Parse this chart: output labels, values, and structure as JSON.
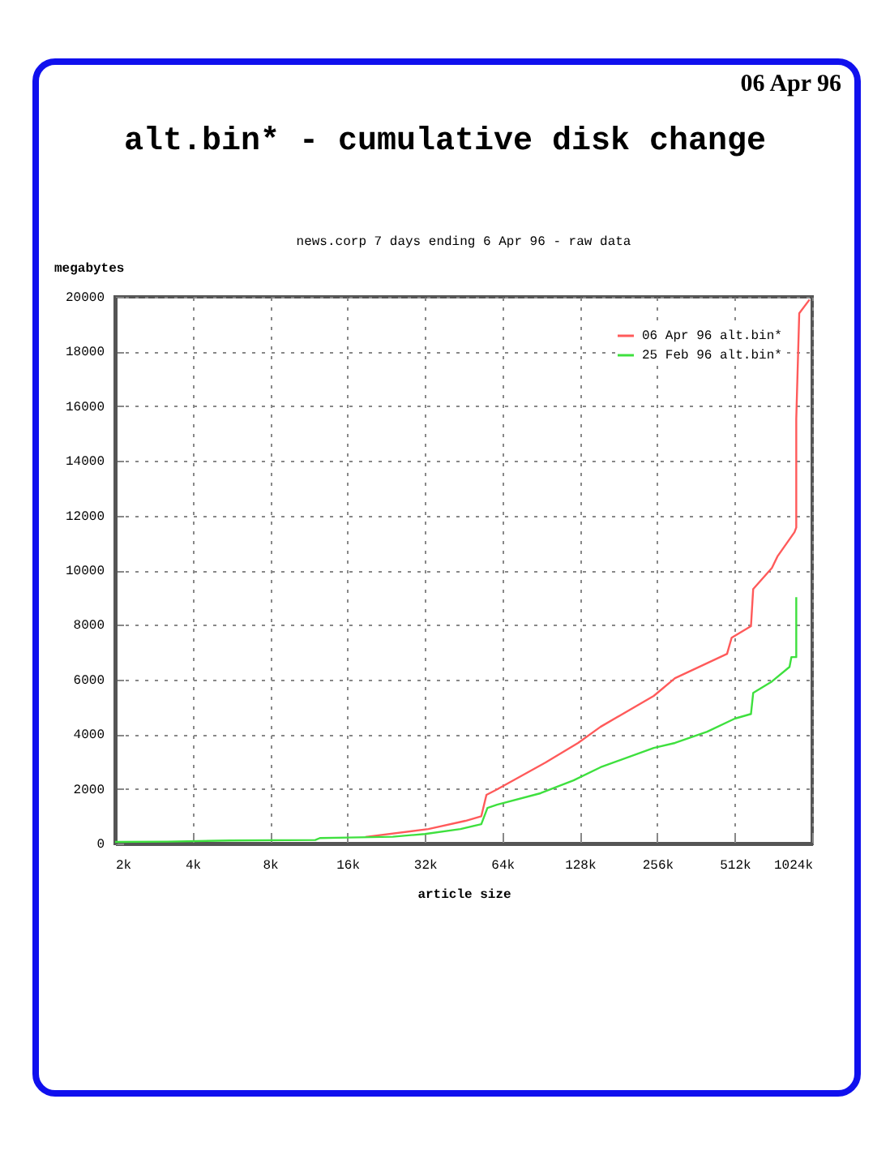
{
  "chart_data": {
    "type": "line",
    "title": "alt.bin* - cumulative disk change",
    "subtitle": "news.corp 7 days ending 6 Apr 96 - raw data",
    "xlabel": "article size",
    "ylabel": "megabytes",
    "annotations": [
      "06 Apr 96"
    ],
    "log": "x",
    "xlim": [
      2,
      1024
    ],
    "xticks": [
      {
        "value": 2,
        "label": "2k"
      },
      {
        "value": 4,
        "label": "4k"
      },
      {
        "value": 8,
        "label": "8k"
      },
      {
        "value": 16,
        "label": "16k"
      },
      {
        "value": 32,
        "label": "32k"
      },
      {
        "value": 64,
        "label": "64k"
      },
      {
        "value": 128,
        "label": "128k"
      },
      {
        "value": 256,
        "label": "256k"
      },
      {
        "value": 512,
        "label": "512k"
      },
      {
        "value": 1024,
        "label": "1024k"
      }
    ],
    "ylim": [
      0,
      20000
    ],
    "yticks": [
      0,
      2000,
      4000,
      6000,
      8000,
      10000,
      12000,
      14000,
      16000,
      18000,
      20000
    ],
    "grid": true,
    "legend": "top right",
    "line_style": "solid",
    "marker": "none",
    "series": [
      {
        "name": "06 Apr 96 alt.bin*",
        "color": "#ff5a5a",
        "x": [
          18.8,
          33,
          46,
          53,
          55.5,
          60.4,
          94,
          126,
          154,
          248,
          300,
          478,
          498,
          592,
          604,
          714,
          750,
          874,
          888,
          888,
          912,
          1000
        ],
        "values": [
          240,
          530,
          830,
          1000,
          1780,
          1960,
          2960,
          3680,
          4270,
          5400,
          6050,
          6940,
          7530,
          7950,
          9310,
          10080,
          10500,
          11390,
          11560,
          15540,
          19400,
          19900
        ]
      },
      {
        "name": "25 Feb 96 alt.bin*",
        "color": "#3ee03e",
        "x": [
          2,
          3.2,
          5.6,
          12,
          12.5,
          16,
          24,
          32,
          44,
          53,
          56,
          61,
          90,
          121,
          154,
          248,
          300,
          400,
          512,
          592,
          604,
          714,
          836,
          850,
          888,
          888
        ],
        "values": [
          60,
          70,
          110,
          130,
          200,
          220,
          250,
          350,
          530,
          710,
          1300,
          1420,
          1840,
          2310,
          2790,
          3500,
          3680,
          4090,
          4570,
          4740,
          5510,
          5930,
          6460,
          6820,
          6820,
          9010
        ]
      }
    ]
  }
}
